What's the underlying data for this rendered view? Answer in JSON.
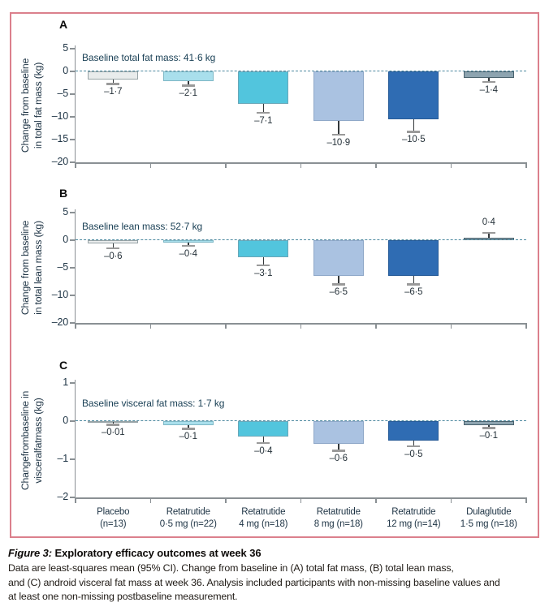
{
  "figure": {
    "frame_color": "#db808c",
    "zero_line_color": "#4e8aa0",
    "axis_color": "#8a9094",
    "text_color": "#1d3344",
    "bar_colors": [
      "#e9ecec",
      "#a9dfec",
      "#52c5dd",
      "#aac2e1",
      "#2f6cb3",
      "#8da4b0"
    ],
    "bar_borders": [
      "#97a3a6",
      "#7fb8c6",
      "#6aa7b8",
      "#8fa8c8",
      "#275b97",
      "#4a626e"
    ],
    "error_stem_color": "#33383b",
    "error_cap_color": "#9a9a9a",
    "categories": [
      {
        "line1": "Placebo",
        "line2": "(n=13)"
      },
      {
        "line1": "Retatrutide",
        "line2": "0·5 mg (n=22)"
      },
      {
        "line1": "Retatrutide",
        "line2": "4 mg (n=18)"
      },
      {
        "line1": "Retatrutide",
        "line2": "8 mg (n=18)"
      },
      {
        "line1": "Retatrutide",
        "line2": "12 mg (n=14)"
      },
      {
        "line1": "Dulaglutide",
        "line2": "1·5 mg (n=18)"
      }
    ]
  },
  "chart_data": [
    {
      "type": "bar",
      "panel": "A",
      "title": "Baseline total fat mass: 41·6 kg",
      "ylabel": "Change from baseline in total fat mass (kg)",
      "ylabel_lines": [
        "Change from baseline",
        "in total fat mass (kg)"
      ],
      "categories": [
        "Placebo (n=13)",
        "Retatrutide 0·5 mg (n=22)",
        "Retatrutide 4 mg (n=18)",
        "Retatrutide 8 mg (n=18)",
        "Retatrutide 12 mg (n=14)",
        "Dulaglutide 1·5 mg (n=18)"
      ],
      "values": [
        -1.7,
        -2.1,
        -7.1,
        -10.9,
        -10.5,
        -1.4
      ],
      "value_labels": [
        "–1·7",
        "–2·1",
        "–7·1",
        "–10·9",
        "–10·5",
        "–1·4"
      ],
      "ci_extent": [
        1.0,
        1.0,
        2.0,
        3.0,
        2.8,
        0.9
      ],
      "yticks": [
        5,
        0,
        -5,
        -10,
        -15,
        -20
      ],
      "ytick_labels": [
        "5",
        "0",
        "–5",
        "–10",
        "–15",
        "–20"
      ],
      "ylim": [
        5,
        -20
      ],
      "grid": false,
      "legend": false
    },
    {
      "type": "bar",
      "panel": "B",
      "title": "Baseline lean mass: 52·7 kg",
      "ylabel": "Change from baseline in total lean mass (kg)",
      "ylabel_lines": [
        "Change from baseline",
        "in total lean mass (kg)"
      ],
      "categories": [
        "Placebo (n=13)",
        "Retatrutide 0·5 mg (n=22)",
        "Retatrutide 4 mg (n=18)",
        "Retatrutide 8 mg (n=18)",
        "Retatrutide 12 mg (n=14)",
        "Dulaglutide 1·5 mg (n=18)"
      ],
      "values": [
        -0.6,
        -0.4,
        -3.1,
        -6.5,
        -6.5,
        0.4
      ],
      "value_labels": [
        "–0·6",
        "–0·4",
        "–3·1",
        "–6·5",
        "–6·5",
        "0·4"
      ],
      "ci_extent": [
        0.8,
        0.6,
        1.4,
        1.5,
        1.5,
        0.9
      ],
      "yticks": [
        5,
        0,
        -5,
        -10,
        -20
      ],
      "ytick_labels": [
        "5",
        "0",
        "–5",
        "–10",
        "–20"
      ],
      "ylim": [
        5,
        -20
      ],
      "grid": false,
      "legend": false
    },
    {
      "type": "bar",
      "panel": "C",
      "title": "Baseline visceral fat mass: 1·7 kg",
      "ylabel": "Changefrombaseline in visceralfatmass (kg)",
      "ylabel_lines": [
        "Changefrombaseline in",
        "visceralfatmass (kg)"
      ],
      "categories": [
        "Placebo (n=13)",
        "Retatrutide 0·5 mg (n=22)",
        "Retatrutide 4 mg (n=18)",
        "Retatrutide 8 mg (n=18)",
        "Retatrutide 12 mg (n=14)",
        "Dulaglutide 1·5 mg (n=18)"
      ],
      "values": [
        -0.01,
        -0.1,
        -0.4,
        -0.6,
        -0.5,
        -0.1
      ],
      "value_labels": [
        "–0·01",
        "–0·1",
        "–0·4",
        "–0·6",
        "–0·5",
        "–0·1"
      ],
      "ci_extent": [
        0.07,
        0.1,
        0.17,
        0.17,
        0.15,
        0.08
      ],
      "yticks": [
        1,
        0,
        -1,
        -2
      ],
      "ytick_labels": [
        "1",
        "0",
        "–1",
        "–2"
      ],
      "ylim": [
        1,
        -2
      ],
      "grid": false,
      "legend": false
    }
  ],
  "caption": {
    "title_prefix": "Figure 3:",
    "title": " Exploratory efficacy outcomes at week 36",
    "lines": [
      "Data are least-squares mean (95% CI). Change from baseline in (A) total fat mass, (B) total lean mass,",
      "and (C) android visceral fat mass at week 36. Analysis included participants with non-missing baseline values and",
      "at least one non-missing postbaseline measurement."
    ]
  }
}
